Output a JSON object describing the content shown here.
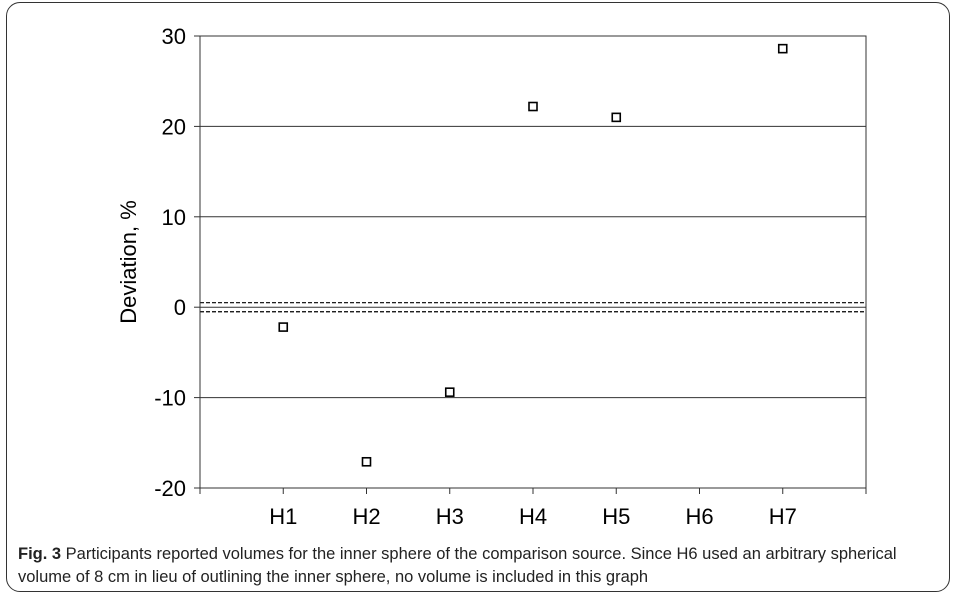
{
  "chart_data": {
    "type": "scatter",
    "ylabel": "Deviation, %",
    "categories": [
      "H1",
      "H2",
      "H3",
      "H4",
      "H5",
      "H6",
      "H7"
    ],
    "ylim": [
      -20,
      30
    ],
    "yticks": [
      -20,
      -10,
      0,
      10,
      20,
      30
    ],
    "grid": true,
    "reference_band": [
      -0.5,
      0.5
    ],
    "series": [
      {
        "values": [
          -2.2,
          -17.1,
          -9.4,
          22.2,
          21.0,
          null,
          28.6
        ]
      }
    ]
  },
  "caption": {
    "label": "Fig. 3",
    "text": " Participants reported volumes for the inner sphere of the comparison source. Since H6 used an arbitrary spherical volume of 8 cm in lieu of outlining the inner sphere, no volume is included in this graph"
  },
  "colors": {
    "marker": "#000000",
    "grid": "#333333",
    "text": "#000000"
  }
}
